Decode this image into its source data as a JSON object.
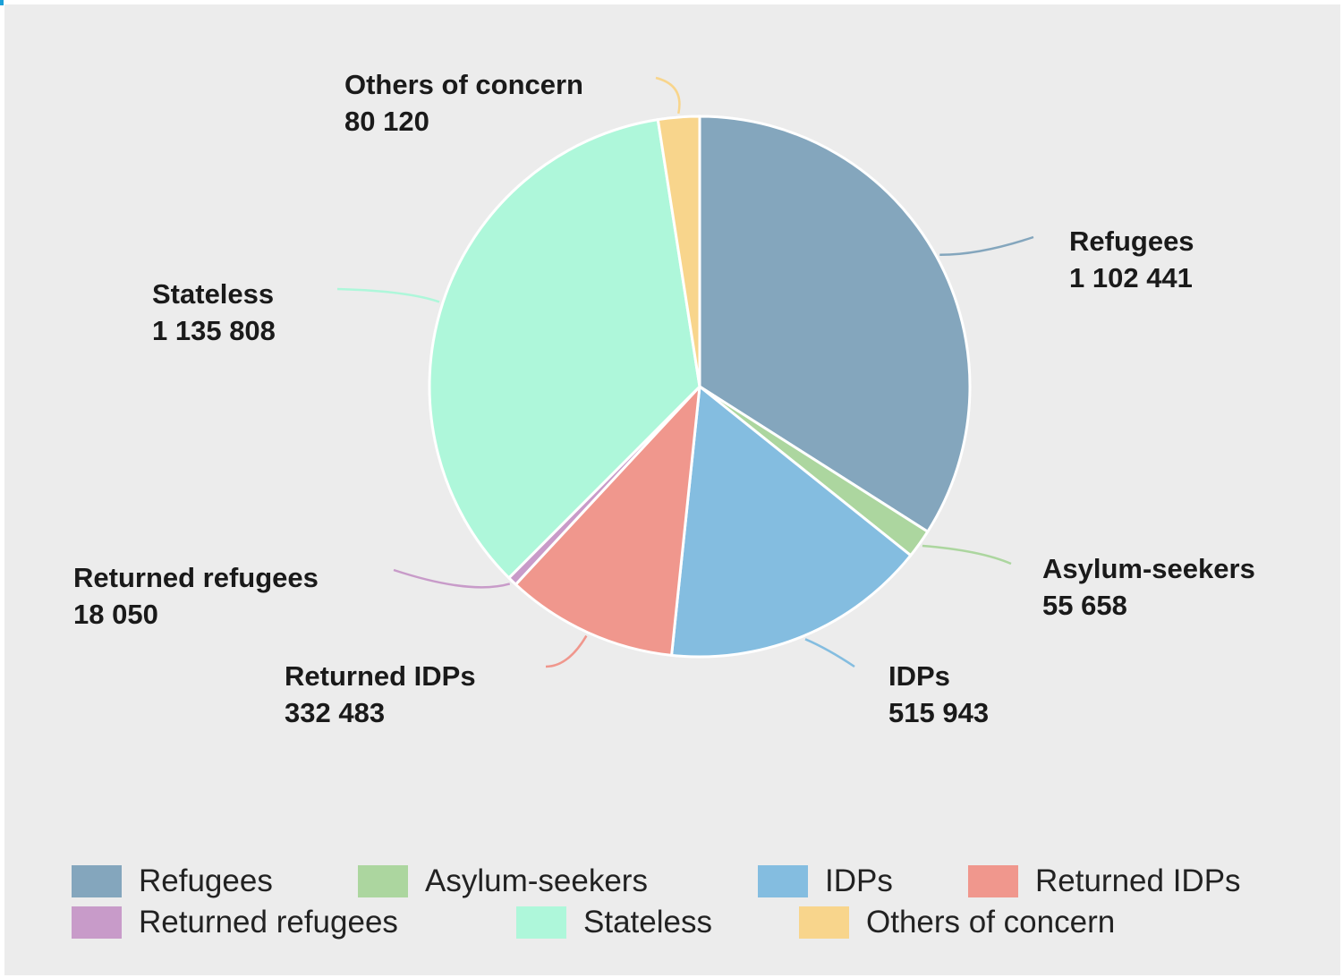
{
  "chart_data": {
    "type": "pie",
    "title": "",
    "legend_position": "bottom",
    "slices": [
      {
        "label": "Refugees",
        "value": 1102441,
        "display_value": "1 102 441",
        "color": "#84a6bd"
      },
      {
        "label": "Asylum-seekers",
        "value": 55658,
        "display_value": "55 658",
        "color": "#acd69f"
      },
      {
        "label": "IDPs",
        "value": 515943,
        "display_value": "515 943",
        "color": "#84bde0"
      },
      {
        "label": "Returned IDPs",
        "value": 332483,
        "display_value": "332 483",
        "color": "#f0978d"
      },
      {
        "label": "Returned refugees",
        "value": 18050,
        "display_value": "18 050",
        "color": "#c89bc9"
      },
      {
        "label": "Stateless",
        "value": 1135808,
        "display_value": "1 135 808",
        "color": "#aef7da"
      },
      {
        "label": "Others of concern",
        "value": 80120,
        "display_value": "80 120",
        "color": "#f8d58c"
      }
    ]
  }
}
